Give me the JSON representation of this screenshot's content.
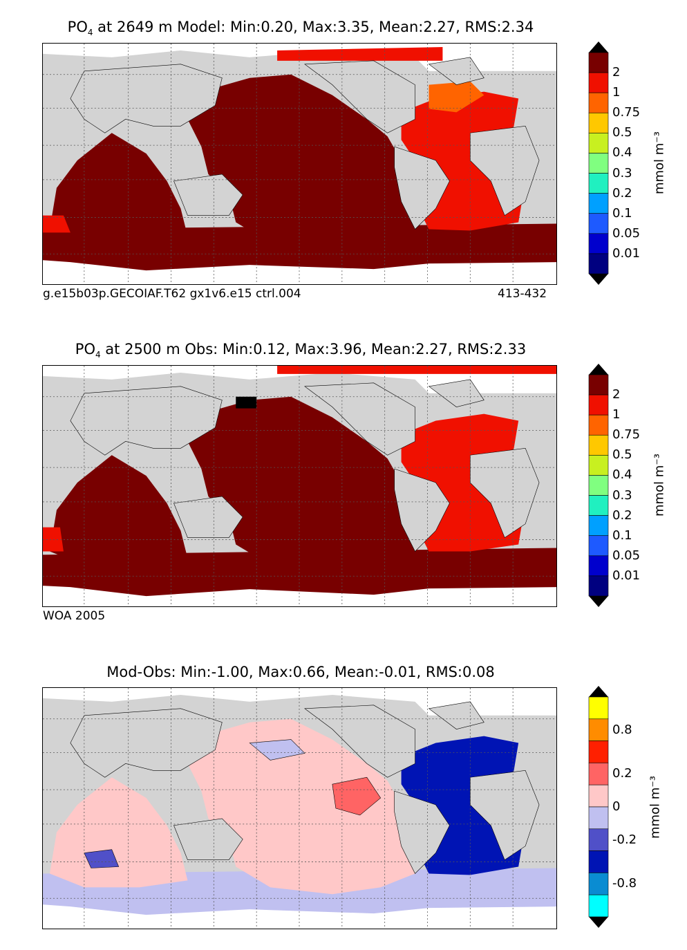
{
  "panels": [
    {
      "title_species": "PO",
      "title_sub": "4",
      "title_rest": " at 2649 m Model: Min:0.20, Max:3.35, Mean:2.27, RMS:2.34",
      "caption_left": "g.e15b03p.GECOIAF.T62 gx1v6.e15 ctrl.004",
      "caption_right": "413-432",
      "units": "mmol m⁻³",
      "colorbar_labels": [
        "2",
        "1",
        "0.75",
        "0.5",
        "0.4",
        "0.3",
        "0.2",
        "0.1",
        "0.05",
        "0.01"
      ]
    },
    {
      "title_species": "PO",
      "title_sub": "4",
      "title_rest": " at 2500 m Obs: Min:0.12, Max:3.96, Mean:2.27, RMS:2.33",
      "caption_left": "WOA 2005",
      "units": "mmol m⁻³",
      "colorbar_labels": [
        "2",
        "1",
        "0.75",
        "0.5",
        "0.4",
        "0.3",
        "0.2",
        "0.1",
        "0.05",
        "0.01"
      ]
    },
    {
      "title_full": "Mod-Obs: Min:-1.00, Max:0.66, Mean:-0.01, RMS:0.08",
      "units": "mmol m⁻³",
      "colorbar_labels": [
        "0.8",
        "0.2",
        "0",
        "-0.2",
        "-0.8"
      ]
    }
  ],
  "colors": {
    "seq": [
      "#000080",
      "#0000cd",
      "#1e5aff",
      "#00a0ff",
      "#20f0c0",
      "#80ff80",
      "#c8f020",
      "#ffc800",
      "#ff6400",
      "#f01000",
      "#780000"
    ],
    "diff": [
      "#00ffff",
      "#0a8cd2",
      "#0014b4",
      "#5050c8",
      "#c0c0f0",
      "#ffc8c8",
      "#ff6464",
      "#ff2000",
      "#ff8c00",
      "#ffff00"
    ],
    "land": "#d3d3d3",
    "nodata": "#ffffff"
  }
}
